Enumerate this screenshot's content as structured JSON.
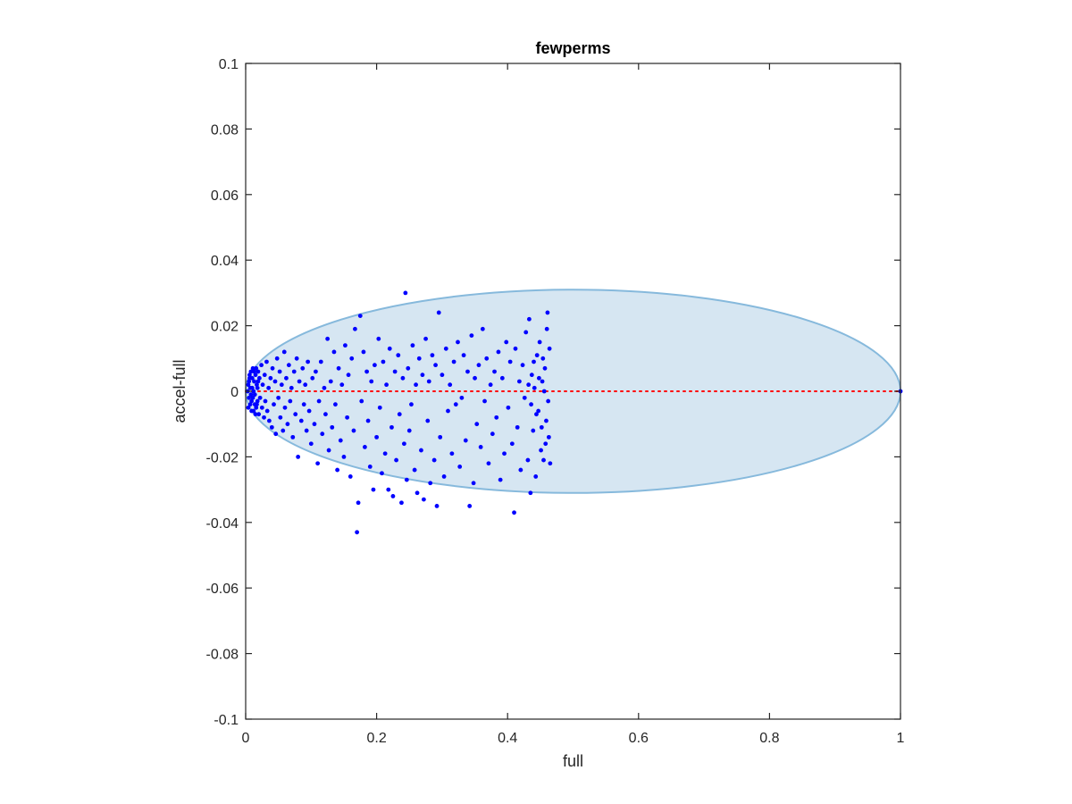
{
  "chart_data": {
    "type": "scatter",
    "title": "fewperms",
    "xlabel": "full",
    "ylabel": "accel-full",
    "xlim": [
      0,
      1
    ],
    "ylim": [
      -0.1,
      0.1
    ],
    "xticks": [
      "0",
      "0.2",
      "0.4",
      "0.6",
      "0.8",
      "1"
    ],
    "xtick_values": [
      0,
      0.2,
      0.4,
      0.6,
      0.8,
      1
    ],
    "yticks": [
      "0.1",
      "0.08",
      "0.06",
      "0.04",
      "0.02",
      "0",
      "-0.02",
      "-0.04",
      "-0.06",
      "-0.08",
      "-0.1"
    ],
    "ytick_values": [
      0.1,
      0.08,
      0.06,
      0.04,
      0.02,
      0,
      -0.02,
      -0.04,
      -0.06,
      -0.08,
      -0.1
    ],
    "grid": false,
    "reference_line": {
      "y": 0,
      "x_range": [
        0,
        1
      ],
      "color": "#ff0000",
      "style": "dotted"
    },
    "ellipse": {
      "center": [
        0.5,
        0
      ],
      "semi_axes": [
        0.5,
        0.031
      ],
      "fill": "#d6e6f2",
      "stroke": "#86b9dc"
    },
    "colors": {
      "points": "#0000ff",
      "axes": "#262626"
    },
    "points": [
      [
        0.003,
        0.0
      ],
      [
        0.004,
        0.002
      ],
      [
        0.005,
        -0.002
      ],
      [
        0.006,
        0.004
      ],
      [
        0.007,
        -0.004
      ],
      [
        0.008,
        0.006
      ],
      [
        0.009,
        -0.003
      ],
      [
        0.01,
        0.001
      ],
      [
        0.011,
        0.007
      ],
      [
        0.012,
        -0.006
      ],
      [
        0.013,
        0.003
      ],
      [
        0.014,
        -0.001
      ],
      [
        0.015,
        0.005
      ],
      [
        0.016,
        -0.005
      ],
      [
        0.017,
        0.002
      ],
      [
        0.018,
        -0.003
      ],
      [
        0.019,
        0.006
      ],
      [
        0.02,
        -0.007
      ],
      [
        0.004,
        -0.005
      ],
      [
        0.006,
        0.005
      ],
      [
        0.008,
        -0.001
      ],
      [
        0.01,
        0.004
      ],
      [
        0.012,
        0.0
      ],
      [
        0.014,
        -0.004
      ],
      [
        0.016,
        0.007
      ],
      [
        0.018,
        0.001
      ],
      [
        0.005,
        0.003
      ],
      [
        0.007,
        0.001
      ],
      [
        0.009,
        -0.006
      ],
      [
        0.011,
        -0.002
      ],
      [
        0.013,
        0.006
      ],
      [
        0.015,
        -0.007
      ],
      [
        0.017,
        -0.004
      ],
      [
        0.019,
        0.003
      ],
      [
        0.021,
        0.004
      ],
      [
        0.022,
        -0.002
      ],
      [
        0.024,
        0.008
      ],
      [
        0.025,
        -0.005
      ],
      [
        0.026,
        0.002
      ],
      [
        0.028,
        -0.008
      ],
      [
        0.029,
        0.005
      ],
      [
        0.03,
        -0.003
      ],
      [
        0.032,
        0.009
      ],
      [
        0.033,
        -0.006
      ],
      [
        0.035,
        0.001
      ],
      [
        0.036,
        -0.009
      ],
      [
        0.038,
        0.004
      ],
      [
        0.04,
        -0.011
      ],
      [
        0.041,
        0.007
      ],
      [
        0.043,
        -0.004
      ],
      [
        0.045,
        0.003
      ],
      [
        0.046,
        -0.013
      ],
      [
        0.048,
        0.01
      ],
      [
        0.05,
        -0.002
      ],
      [
        0.052,
        0.006
      ],
      [
        0.053,
        -0.008
      ],
      [
        0.055,
        0.002
      ],
      [
        0.057,
        -0.012
      ],
      [
        0.059,
        0.012
      ],
      [
        0.06,
        -0.005
      ],
      [
        0.062,
        0.004
      ],
      [
        0.064,
        -0.01
      ],
      [
        0.066,
        0.008
      ],
      [
        0.068,
        -0.003
      ],
      [
        0.07,
        0.001
      ],
      [
        0.072,
        -0.014
      ],
      [
        0.074,
        0.006
      ],
      [
        0.076,
        -0.007
      ],
      [
        0.078,
        0.01
      ],
      [
        0.08,
        -0.02
      ],
      [
        0.082,
        0.003
      ],
      [
        0.085,
        -0.009
      ],
      [
        0.087,
        0.007
      ],
      [
        0.089,
        -0.004
      ],
      [
        0.091,
        0.002
      ],
      [
        0.093,
        -0.012
      ],
      [
        0.095,
        0.009
      ],
      [
        0.097,
        -0.006
      ],
      [
        0.1,
        -0.016
      ],
      [
        0.102,
        0.004
      ],
      [
        0.105,
        -0.01
      ],
      [
        0.107,
        0.006
      ],
      [
        0.11,
        -0.022
      ],
      [
        0.112,
        -0.003
      ],
      [
        0.115,
        0.009
      ],
      [
        0.117,
        -0.013
      ],
      [
        0.12,
        0.001
      ],
      [
        0.122,
        -0.007
      ],
      [
        0.125,
        0.016
      ],
      [
        0.127,
        -0.018
      ],
      [
        0.13,
        0.003
      ],
      [
        0.132,
        -0.011
      ],
      [
        0.135,
        0.012
      ],
      [
        0.137,
        -0.004
      ],
      [
        0.14,
        -0.024
      ],
      [
        0.142,
        0.007
      ],
      [
        0.145,
        -0.015
      ],
      [
        0.147,
        0.002
      ],
      [
        0.15,
        -0.02
      ],
      [
        0.152,
        0.014
      ],
      [
        0.155,
        -0.008
      ],
      [
        0.157,
        0.005
      ],
      [
        0.16,
        -0.026
      ],
      [
        0.162,
        0.01
      ],
      [
        0.165,
        -0.012
      ],
      [
        0.167,
        0.019
      ],
      [
        0.17,
        -0.043
      ],
      [
        0.172,
        -0.034
      ],
      [
        0.175,
        0.023
      ],
      [
        0.177,
        -0.003
      ],
      [
        0.18,
        0.012
      ],
      [
        0.182,
        -0.017
      ],
      [
        0.185,
        0.006
      ],
      [
        0.187,
        -0.009
      ],
      [
        0.19,
        -0.023
      ],
      [
        0.192,
        0.003
      ],
      [
        0.195,
        -0.03
      ],
      [
        0.197,
        0.008
      ],
      [
        0.2,
        -0.014
      ],
      [
        0.203,
        0.016
      ],
      [
        0.205,
        -0.005
      ],
      [
        0.208,
        -0.025
      ],
      [
        0.21,
        0.009
      ],
      [
        0.213,
        -0.019
      ],
      [
        0.215,
        0.002
      ],
      [
        0.218,
        -0.03
      ],
      [
        0.22,
        0.013
      ],
      [
        0.223,
        -0.011
      ],
      [
        0.225,
        -0.032
      ],
      [
        0.228,
        0.006
      ],
      [
        0.23,
        -0.021
      ],
      [
        0.233,
        0.011
      ],
      [
        0.235,
        -0.007
      ],
      [
        0.238,
        -0.034
      ],
      [
        0.24,
        0.004
      ],
      [
        0.242,
        -0.016
      ],
      [
        0.244,
        0.03
      ],
      [
        0.246,
        -0.027
      ],
      [
        0.248,
        0.007
      ],
      [
        0.25,
        -0.012
      ],
      [
        0.253,
        -0.004
      ],
      [
        0.255,
        0.014
      ],
      [
        0.258,
        -0.024
      ],
      [
        0.26,
        0.002
      ],
      [
        0.262,
        -0.031
      ],
      [
        0.265,
        0.01
      ],
      [
        0.268,
        -0.018
      ],
      [
        0.27,
        0.005
      ],
      [
        0.272,
        -0.033
      ],
      [
        0.275,
        0.016
      ],
      [
        0.278,
        -0.009
      ],
      [
        0.28,
        0.003
      ],
      [
        0.282,
        -0.028
      ],
      [
        0.285,
        0.011
      ],
      [
        0.288,
        -0.021
      ],
      [
        0.29,
        0.008
      ],
      [
        0.292,
        -0.035
      ],
      [
        0.295,
        0.024
      ],
      [
        0.297,
        -0.014
      ],
      [
        0.3,
        0.005
      ],
      [
        0.303,
        -0.026
      ],
      [
        0.306,
        0.013
      ],
      [
        0.309,
        -0.006
      ],
      [
        0.312,
        0.002
      ],
      [
        0.315,
        -0.019
      ],
      [
        0.318,
        0.009
      ],
      [
        0.321,
        -0.004
      ],
      [
        0.324,
        0.015
      ],
      [
        0.327,
        -0.023
      ],
      [
        0.33,
        -0.002
      ],
      [
        0.333,
        0.011
      ],
      [
        0.336,
        -0.015
      ],
      [
        0.339,
        0.006
      ],
      [
        0.342,
        -0.035
      ],
      [
        0.345,
        0.017
      ],
      [
        0.348,
        -0.028
      ],
      [
        0.35,
        0.004
      ],
      [
        0.353,
        -0.01
      ],
      [
        0.356,
        0.008
      ],
      [
        0.359,
        -0.017
      ],
      [
        0.362,
        0.019
      ],
      [
        0.365,
        -0.003
      ],
      [
        0.368,
        0.01
      ],
      [
        0.371,
        -0.022
      ],
      [
        0.374,
        0.002
      ],
      [
        0.377,
        -0.013
      ],
      [
        0.38,
        0.006
      ],
      [
        0.383,
        -0.008
      ],
      [
        0.386,
        0.012
      ],
      [
        0.389,
        -0.027
      ],
      [
        0.392,
        0.004
      ],
      [
        0.395,
        -0.019
      ],
      [
        0.398,
        0.015
      ],
      [
        0.401,
        -0.005
      ],
      [
        0.404,
        0.009
      ],
      [
        0.407,
        -0.016
      ],
      [
        0.41,
        -0.037
      ],
      [
        0.412,
        0.013
      ],
      [
        0.415,
        -0.011
      ],
      [
        0.418,
        0.003
      ],
      [
        0.42,
        -0.024
      ],
      [
        0.423,
        0.008
      ],
      [
        0.426,
        -0.002
      ],
      [
        0.428,
        0.018
      ],
      [
        0.431,
        -0.021
      ],
      [
        0.433,
        0.022
      ],
      [
        0.435,
        -0.031
      ],
      [
        0.437,
        0.005
      ],
      [
        0.439,
        -0.012
      ],
      [
        0.441,
        0.001
      ],
      [
        0.443,
        -0.026
      ],
      [
        0.445,
        0.011
      ],
      [
        0.447,
        -0.006
      ],
      [
        0.449,
        0.015
      ],
      [
        0.451,
        -0.018
      ],
      [
        0.453,
        0.003
      ],
      [
        0.455,
        -0.021
      ],
      [
        0.457,
        0.007
      ],
      [
        0.459,
        -0.009
      ],
      [
        0.461,
        0.024
      ],
      [
        0.463,
        -0.014
      ],
      [
        0.465,
        -0.022
      ],
      [
        0.464,
        0.013
      ],
      [
        0.462,
        -0.003
      ],
      [
        0.46,
        0.019
      ],
      [
        0.458,
        -0.016
      ],
      [
        0.456,
        0.0
      ],
      [
        0.454,
        0.01
      ],
      [
        0.452,
        -0.011
      ],
      [
        0.448,
        0.004
      ],
      [
        0.444,
        -0.007
      ],
      [
        0.44,
        0.009
      ],
      [
        0.436,
        -0.004
      ],
      [
        0.432,
        0.002
      ],
      [
        1.0,
        0.0
      ]
    ]
  }
}
